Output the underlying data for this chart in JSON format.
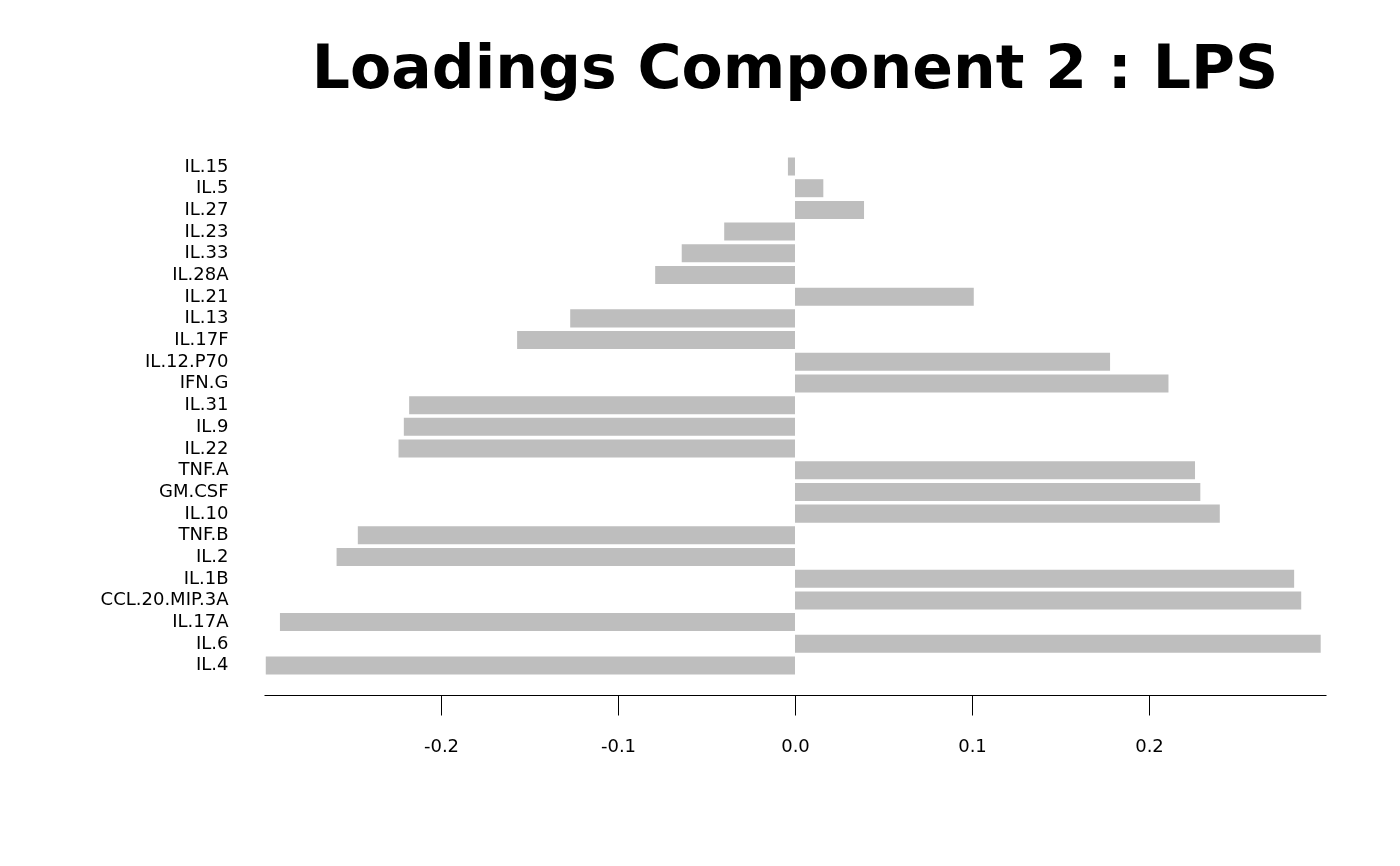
{
  "chart_data": {
    "type": "bar",
    "orientation": "horizontal",
    "title": "Loadings Component 2 : LPS",
    "categories": [
      "IL.15",
      "IL.5",
      "IL.27",
      "IL.23",
      "IL.33",
      "IL.28A",
      "IL.21",
      "IL.13",
      "IL.17F",
      "IL.12.P70",
      "IFN.G",
      "IL.31",
      "IL.9",
      "IL.22",
      "TNF.A",
      "GM.CSF",
      "IL.10",
      "TNF.B",
      "IL.2",
      "IL.1B",
      "CCL.20.MIP.3A",
      "IL.17A",
      "IL.6",
      "IL.4"
    ],
    "values": [
      -0.004,
      0.016,
      0.039,
      -0.04,
      -0.064,
      -0.079,
      0.101,
      -0.127,
      -0.157,
      0.178,
      0.211,
      -0.218,
      -0.221,
      -0.224,
      0.226,
      0.229,
      0.24,
      -0.247,
      -0.259,
      0.282,
      0.286,
      -0.291,
      0.297,
      -0.299
    ],
    "color": "#bebebe",
    "xlim": [
      -0.3,
      0.3
    ],
    "xticks": [
      -0.2,
      -0.1,
      {
        "value": 0,
        "label": "0.0"
      },
      0.1,
      0.2
    ],
    "grid": false
  }
}
